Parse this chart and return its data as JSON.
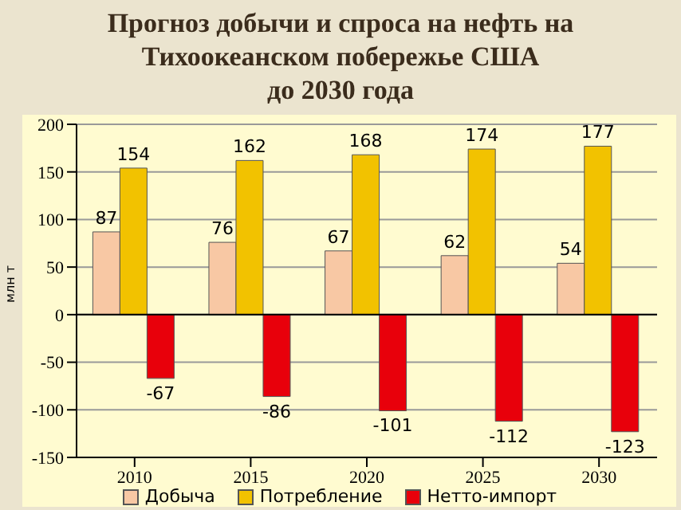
{
  "chart_data": {
    "type": "bar",
    "title": "Прогноз добычи и спроса на нефть на\nТихоокеанском побережье США\nдо 2030 года",
    "ylabel": "млн т",
    "categories": [
      "2010",
      "2015",
      "2020",
      "2025",
      "2030"
    ],
    "series": [
      {
        "name": "Добыча",
        "color": "#f8c8a4",
        "values": [
          87,
          76,
          67,
          62,
          54
        ]
      },
      {
        "name": "Потребление",
        "color": "#f2c200",
        "values": [
          154,
          162,
          168,
          174,
          177
        ]
      },
      {
        "name": "Нетто-импорт",
        "color": "#e8000b",
        "values": [
          -67,
          -86,
          -101,
          -112,
          -123
        ]
      }
    ],
    "ylim": [
      -150,
      200
    ],
    "yticks": [
      -150,
      -100,
      -50,
      0,
      50,
      100,
      150,
      200
    ],
    "grid": "y",
    "legend": "bottom",
    "data_labels": true
  }
}
